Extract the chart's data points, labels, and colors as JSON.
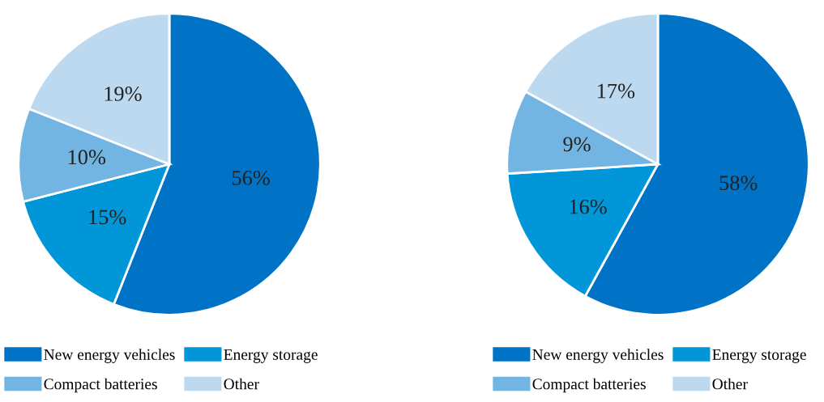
{
  "chart_data": [
    {
      "type": "pie",
      "categories": [
        "New energy vehicles",
        "Energy storage",
        "Compact batteries",
        "Other"
      ],
      "values": [
        56,
        15,
        10,
        19
      ],
      "value_labels": [
        "56%",
        "15%",
        "10%",
        "19%"
      ],
      "colors": [
        "#0073c6",
        "#0096d8",
        "#72b5e2",
        "#bdd9f0"
      ],
      "legend": "bottom"
    },
    {
      "type": "pie",
      "categories": [
        "New energy vehicles",
        "Energy storage",
        "Compact batteries",
        "Other"
      ],
      "values": [
        58,
        16,
        9,
        17
      ],
      "value_labels": [
        "58%",
        "16%",
        "9%",
        "17%"
      ],
      "colors": [
        "#0073c6",
        "#0096d8",
        "#72b5e2",
        "#bdd9f0"
      ],
      "legend": "bottom"
    }
  ]
}
